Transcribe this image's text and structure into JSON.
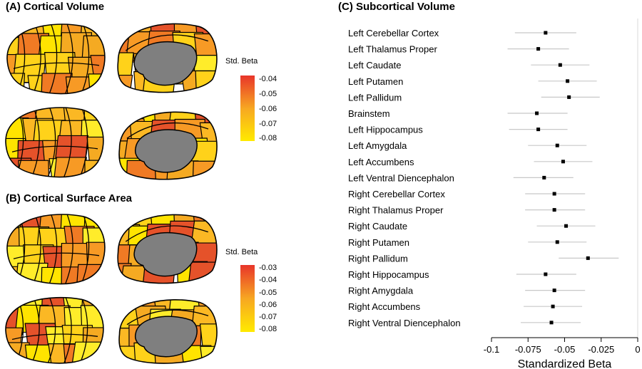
{
  "panels": {
    "a_title": "(A) Cortical Volume",
    "b_title": "(B) Cortical Surface Area",
    "c_title": "(C) Subcortical Volume"
  },
  "colors": {
    "low": "#ffea00",
    "mid": "#f7a722",
    "high": "#e8352a",
    "outline": "#000000",
    "medial_wall": "#7f7f7f",
    "ci": "#c8c8c8",
    "point": "#000000"
  },
  "colorbars": [
    {
      "title": "Std. Beta",
      "ticks": [
        "-0.04",
        "-0.05",
        "-0.06",
        "-0.07",
        "-0.08"
      ]
    },
    {
      "title": "Std. Beta",
      "ticks": [
        "-0.03",
        "-0.04",
        "-0.05",
        "-0.06",
        "-0.07",
        "-0.08"
      ]
    }
  ],
  "chart_data": {
    "type": "scatter",
    "title": "(C) Subcortical Volume",
    "xlabel": "Standardized Beta",
    "xlim": [
      -0.1,
      0
    ],
    "xticks": [
      "-0.1",
      "-0.075",
      "-0.05",
      "-0.025",
      "0"
    ],
    "xtick_values": [
      -0.1,
      -0.075,
      -0.05,
      -0.025,
      0
    ],
    "grid": false,
    "reference_line": 0,
    "categories": [
      "Left Cerebellar Cortex",
      "Left Thalamus Proper",
      "Left Caudate",
      "Left Putamen",
      "Left Pallidum",
      "Brainstem",
      "Left Hippocampus",
      "Left Amygdala",
      "Left Accumbens",
      "Left Ventral Diencephalon",
      "Right Cerebellar Cortex",
      "Right Thalamus Proper",
      "Right Caudate",
      "Right Putamen",
      "Right Pallidum",
      "Right Hippocampus",
      "Right Amygdala",
      "Right Accumbens",
      "Right Ventral Diencephalon"
    ],
    "values": [
      -0.063,
      -0.068,
      -0.053,
      -0.048,
      -0.047,
      -0.069,
      -0.068,
      -0.055,
      -0.051,
      -0.064,
      -0.057,
      -0.057,
      -0.049,
      -0.055,
      -0.034,
      -0.063,
      -0.057,
      -0.058,
      -0.059
    ],
    "ci_low": [
      -0.084,
      -0.089,
      -0.073,
      -0.068,
      -0.066,
      -0.089,
      -0.088,
      -0.075,
      -0.071,
      -0.085,
      -0.077,
      -0.077,
      -0.069,
      -0.075,
      -0.054,
      -0.083,
      -0.077,
      -0.078,
      -0.08
    ],
    "ci_high": [
      -0.042,
      -0.047,
      -0.033,
      -0.028,
      -0.026,
      -0.048,
      -0.048,
      -0.035,
      -0.031,
      -0.044,
      -0.036,
      -0.036,
      -0.029,
      -0.035,
      -0.013,
      -0.042,
      -0.036,
      -0.038,
      -0.039
    ]
  }
}
